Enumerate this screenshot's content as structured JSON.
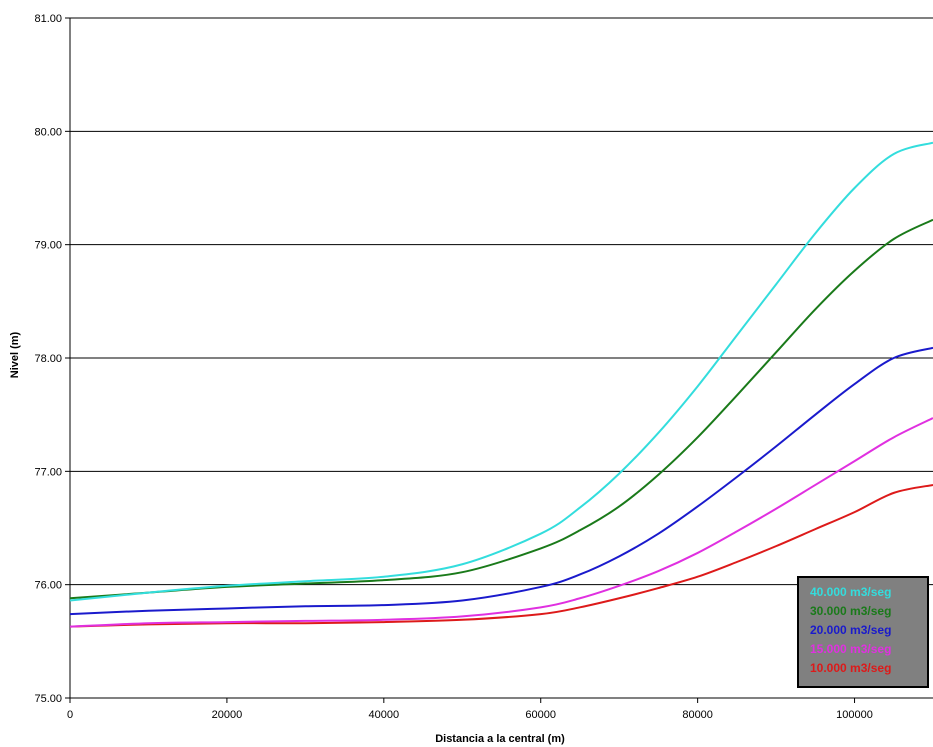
{
  "chart_data": {
    "type": "line",
    "xlabel": "Distancia a la central (m)",
    "ylabel": "Nivel (m)",
    "xlim": [
      0,
      110000
    ],
    "ylim": [
      75.0,
      81.0
    ],
    "x_ticks": [
      "0",
      "20000",
      "40000",
      "60000",
      "80000",
      "100000"
    ],
    "y_ticks": [
      "75.00",
      "76.00",
      "77.00",
      "78.00",
      "79.00",
      "80.00",
      "81.00"
    ],
    "grid": "horizontal",
    "legend_position": "bottom-right",
    "x": [
      0,
      10000,
      20000,
      30000,
      40000,
      50000,
      60000,
      65000,
      70000,
      75000,
      80000,
      85000,
      90000,
      95000,
      100000,
      105000,
      110000
    ],
    "series": [
      {
        "name": "40.000 m3/seg",
        "color": "#33dddd",
        "values": [
          75.86,
          75.93,
          75.99,
          76.03,
          76.07,
          76.18,
          76.45,
          76.68,
          76.98,
          77.34,
          77.75,
          78.2,
          78.65,
          79.1,
          79.5,
          79.8,
          79.9
        ]
      },
      {
        "name": "30.000 m3/seg",
        "color": "#1a7a1a",
        "values": [
          75.88,
          75.93,
          75.98,
          76.01,
          76.04,
          76.11,
          76.32,
          76.48,
          76.69,
          76.97,
          77.3,
          77.67,
          78.05,
          78.43,
          78.77,
          79.05,
          79.22
        ]
      },
      {
        "name": "20.000 m3/seg",
        "color": "#1a1acc",
        "values": [
          75.74,
          75.77,
          75.79,
          75.81,
          75.82,
          75.86,
          75.98,
          76.09,
          76.25,
          76.45,
          76.69,
          76.95,
          77.22,
          77.5,
          77.77,
          78.0,
          78.09
        ]
      },
      {
        "name": "15.000 m3/seg",
        "color": "#e030e0",
        "values": [
          75.63,
          75.66,
          75.67,
          75.68,
          75.69,
          75.72,
          75.8,
          75.88,
          75.99,
          76.12,
          76.28,
          76.47,
          76.67,
          76.88,
          77.09,
          77.3,
          77.47
        ]
      },
      {
        "name": "10.000 m3/seg",
        "color": "#dd1a1a",
        "values": [
          75.63,
          75.65,
          75.66,
          75.66,
          75.67,
          75.69,
          75.74,
          75.8,
          75.88,
          75.97,
          76.07,
          76.2,
          76.34,
          76.49,
          76.64,
          76.81,
          76.88
        ]
      }
    ]
  }
}
